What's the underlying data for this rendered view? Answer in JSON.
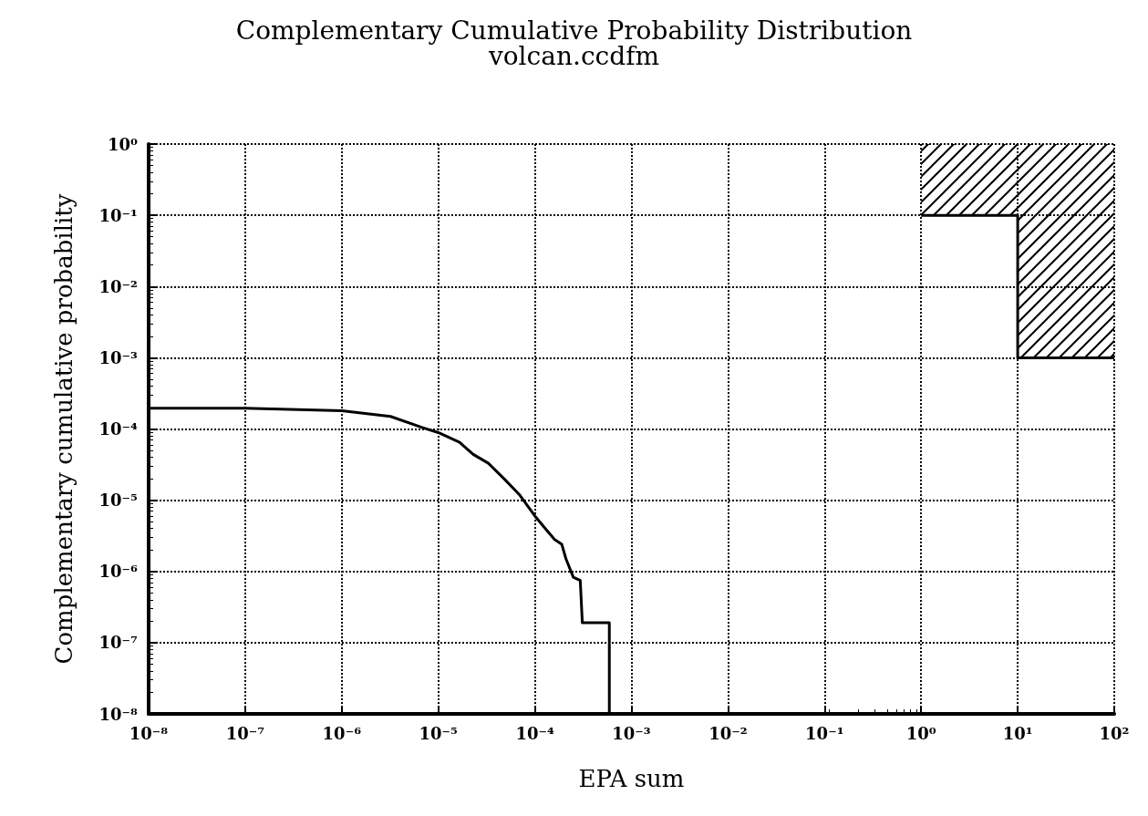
{
  "chart_data": {
    "type": "line",
    "title": "Complementary Cumulative Probability Distribution",
    "subtitle": "volcan.ccdfm",
    "xlabel": "EPA sum",
    "ylabel": "Complementary cumulative probability",
    "log": "xy",
    "grid": true,
    "line_style": "solid",
    "marker": "none",
    "xlim": [
      1e-08,
      100
    ],
    "ylim": [
      1e-08,
      1
    ],
    "xticks": [
      {
        "value": 1e-08,
        "label": "10⁻⁸"
      },
      {
        "value": 1e-07,
        "label": "10⁻⁷"
      },
      {
        "value": 1e-06,
        "label": "10⁻⁶"
      },
      {
        "value": 1e-05,
        "label": "10⁻⁵"
      },
      {
        "value": 0.0001,
        "label": "10⁻⁴"
      },
      {
        "value": 0.001,
        "label": "10⁻³"
      },
      {
        "value": 0.01,
        "label": "10⁻²"
      },
      {
        "value": 0.1,
        "label": "10⁻¹"
      },
      {
        "value": 1,
        "label": "10⁰"
      },
      {
        "value": 10,
        "label": "10¹"
      },
      {
        "value": 100,
        "label": "10²"
      }
    ],
    "yticks": [
      {
        "value": 1e-08,
        "label": "10⁻⁸"
      },
      {
        "value": 1e-07,
        "label": "10⁻⁷"
      },
      {
        "value": 1e-06,
        "label": "10⁻⁶"
      },
      {
        "value": 1e-05,
        "label": "10⁻⁵"
      },
      {
        "value": 0.0001,
        "label": "10⁻⁴"
      },
      {
        "value": 0.001,
        "label": "10⁻³"
      },
      {
        "value": 0.01,
        "label": "10⁻²"
      },
      {
        "value": 0.1,
        "label": "10⁻¹"
      },
      {
        "value": 1,
        "label": "10⁰"
      }
    ],
    "series": [
      {
        "color": "#000000",
        "x": [
          1e-08,
          1e-07,
          1e-06,
          3.2e-06,
          6.8e-06,
          1e-05,
          1.66e-05,
          2.3e-05,
          3.3e-05,
          4.8e-05,
          6.9e-05,
          0.0001,
          0.00013,
          0.00016,
          0.00019,
          0.00021,
          0.00025,
          0.000295,
          0.00031,
          0.00059,
          0.00059
        ],
        "values": [
          0.000195,
          0.000195,
          0.00018,
          0.00015,
          0.000105,
          8.9e-05,
          6.5e-05,
          4.4e-05,
          3.3e-05,
          2e-05,
          1.2e-05,
          6e-06,
          3.9e-06,
          2.8e-06,
          2.4e-06,
          1.5e-06,
          8.3e-07,
          7.5e-07,
          1.9e-07,
          1.9e-07,
          1e-08
        ]
      },
      {
        "type": "line",
        "color": "#000000",
        "x": [
          1,
          10,
          10,
          100
        ],
        "values": [
          0.1,
          0.1,
          0.001,
          0.001
        ],
        "lower": [
          0.1,
          0.1,
          0.001,
          0.001
        ],
        "upper": [
          1,
          1,
          1,
          1
        ]
      }
    ]
  }
}
